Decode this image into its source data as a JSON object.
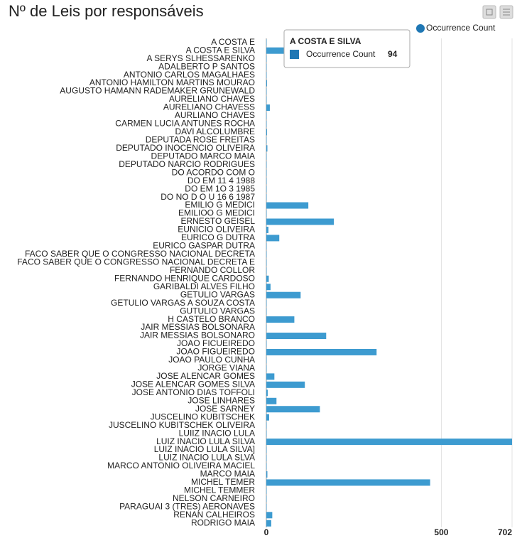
{
  "chart_data": {
    "type": "bar",
    "orientation": "horizontal",
    "title": "Nº de Leis por responsáveis",
    "categories": [
      "A COSTA E",
      "A COSTA E SILVA",
      "A SERYS SLHESSARENKO",
      "ADALBERTO P SANTOS",
      "ANTONIO CARLOS MAGALHAES",
      "ANTONIO HAMILTON MARTINS MOURAO",
      "AUGUSTO HAMANN RADEMAKER GRUNEWALD",
      "AURELIANO CHAVES",
      "AURELIANO CHAVESS",
      "AURLIANO CHAVES",
      "CARMEN LUCIA ANTUNES ROCHA",
      "DAVI ALCOLUMBRE",
      "DEPUTADA ROSE FREITAS",
      "DEPUTADO INOCENCIO OLIVEIRA",
      "DEPUTADO MARCO MAIA",
      "DEPUTADO NARCIO RODRIGUES",
      "DO ACORDO COM O",
      "DO EM 11 4 1988",
      "DO EM 1O 3 1985",
      "DO NO D O U 16 6 1987",
      "EMILIO G MEDICI",
      "EMILIOO G MEDICI",
      "ERNESTO GEISEL",
      "EUNICIO OLIVEIRA",
      "EURICO G DUTRA",
      "EURICO GASPAR DUTRA",
      "FACO SABER QUE O CONGRESSO NACIONAL DECRETA",
      "FACO SABER QUE O CONGRESSO NACIONAL DECRETA E",
      "FERNANDO COLLOR",
      "FERNANDO HENRIQUE CARDOSO",
      "GARIBALDI ALVES FILHO",
      "GETULIO VARGAS",
      "GETULIO VARGAS A SOUZA COSTA",
      "GUTULIO VARGAS",
      "H CASTELO BRANCO",
      "JAIR MESSIAS BOLSONARA",
      "JAIR MESSIAS BOLSONARO",
      "JOAO FICUEIREDO",
      "JOAO FIGUEIREDO",
      "JOAO PAULO CUNHA",
      "JORGE VIANA",
      "JOSE ALENCAR GOMES",
      "JOSE ALENCAR GOMES SILVA",
      "JOSE ANTONIO DIAS TOFFOLI",
      "JOSE LINHARES",
      "JOSE SARNEY",
      "JUSCELINO KUBITSCHEK",
      "JUSCELINO KUBITSCHEK OLIVEIRA",
      "LUIIZ INACIO LULA",
      "LUIZ INACIO LULA SILVA",
      "LUIZ INACIO LULA SILVA]",
      "LUIZ INACIO LULA SLVA",
      "MARCO ANTONIO OLIVEIRA MACIEL",
      "MARCO MAIA",
      "MICHEL TEMER",
      "MICHEL TEMMER",
      "NELSON CARNEIRO",
      "PARAGUAI 3 (TRES) AERONAVES",
      "RENAN CALHEIROS",
      "RODRIGO MAIA"
    ],
    "series": [
      {
        "name": "Occurrence Count",
        "color": "#3d9bd0",
        "legend_color": "#1f77b4",
        "values": [
          1,
          94,
          1,
          1,
          1,
          2,
          1,
          1,
          10,
          1,
          1,
          2,
          1,
          3,
          1,
          1,
          1,
          1,
          1,
          1,
          120,
          1,
          193,
          6,
          37,
          1,
          1,
          1,
          1,
          7,
          12,
          98,
          1,
          1,
          80,
          1,
          171,
          1,
          315,
          1,
          1,
          23,
          110,
          4,
          29,
          153,
          8,
          1,
          1,
          702,
          1,
          1,
          1,
          3,
          468,
          1,
          1,
          1,
          17,
          14
        ]
      }
    ],
    "xlim": [
      0,
      702
    ],
    "xticks": [
      0,
      500,
      702
    ],
    "grid": true,
    "legend": "top-right",
    "tooltip": {
      "index": 1
    }
  }
}
